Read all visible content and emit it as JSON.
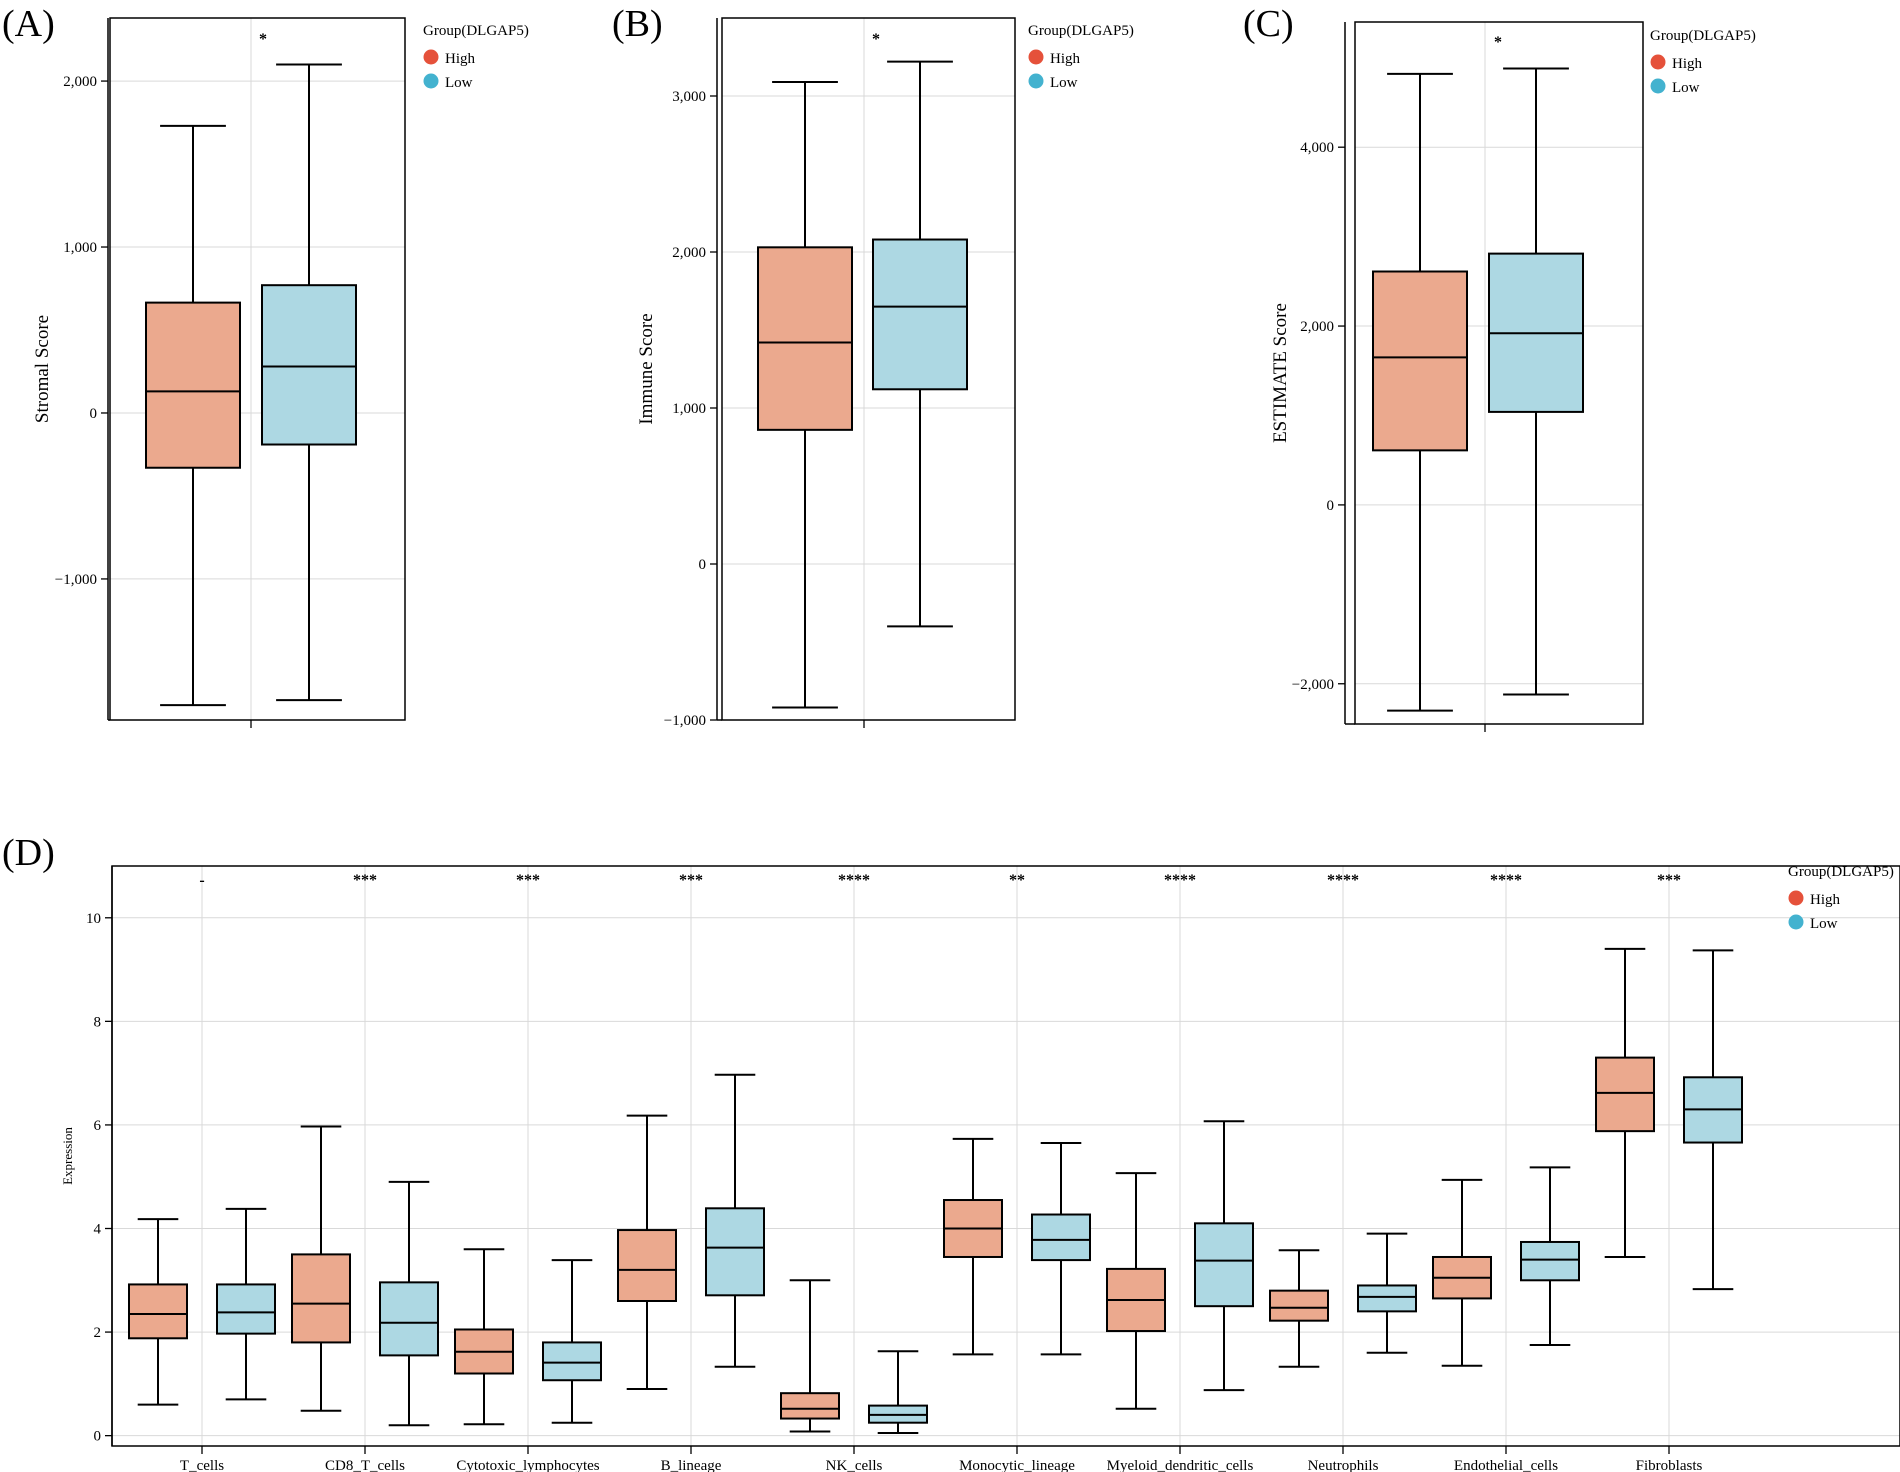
{
  "colors": {
    "high": "#EBA98E",
    "low": "#ADD8E3",
    "high_dot": "#E5513A",
    "low_dot": "#43B2CF"
  },
  "chart_data": [
    {
      "panel": "(A)",
      "type": "boxplot",
      "ylabel": "Stromal Score",
      "ylim": [
        -1850,
        2380
      ],
      "yticks": [
        -1000,
        0,
        1000,
        2000
      ],
      "ytick_labels": [
        "−1,000",
        "0",
        "1,000",
        "2,000"
      ],
      "significance": "*",
      "legend": {
        "title": "Group(DLGAP5)",
        "items": [
          "High",
          "Low"
        ]
      },
      "series": [
        {
          "name": "High",
          "min": -1760,
          "q1": -330,
          "median": 130,
          "q3": 665,
          "max": 1730
        },
        {
          "name": "Low",
          "min": -1730,
          "q1": -190,
          "median": 280,
          "q3": 770,
          "max": 2100
        }
      ]
    },
    {
      "panel": "(B)",
      "type": "boxplot",
      "ylabel": "Immune Score",
      "ylim": [
        -1000,
        3500
      ],
      "yticks": [
        -1000,
        0,
        1000,
        2000,
        3000
      ],
      "ytick_labels": [
        "−1,000",
        "0",
        "1,000",
        "2,000",
        "3,000"
      ],
      "significance": "*",
      "legend": {
        "title": "Group(DLGAP5)",
        "items": [
          "High",
          "Low"
        ]
      },
      "series": [
        {
          "name": "High",
          "min": -920,
          "q1": 860,
          "median": 1420,
          "q3": 2030,
          "max": 3090
        },
        {
          "name": "Low",
          "min": -400,
          "q1": 1120,
          "median": 1650,
          "q3": 2080,
          "max": 3220
        }
      ]
    },
    {
      "panel": "(C)",
      "type": "boxplot",
      "ylabel": "ESTIMATE Score",
      "ylim": [
        -2450,
        5400
      ],
      "yticks": [
        -2000,
        0,
        2000,
        4000
      ],
      "ytick_labels": [
        "−2,000",
        "0",
        "2,000",
        "4,000"
      ],
      "significance": "*",
      "legend": {
        "title": "Group(DLGAP5)",
        "items": [
          "High",
          "Low"
        ]
      },
      "series": [
        {
          "name": "High",
          "min": -2300,
          "q1": 610,
          "median": 1650,
          "q3": 2610,
          "max": 4820
        },
        {
          "name": "Low",
          "min": -2120,
          "q1": 1040,
          "median": 1920,
          "q3": 2810,
          "max": 4880
        }
      ]
    },
    {
      "panel": "(D)",
      "type": "grouped_boxplot",
      "ylabel": "Expression",
      "ylim": [
        -0.2,
        11.0
      ],
      "yticks": [
        0,
        2,
        4,
        6,
        8,
        10
      ],
      "ytick_labels": [
        "0",
        "2",
        "4",
        "6",
        "8",
        "10"
      ],
      "legend": {
        "title": "Group(DLGAP5)",
        "items": [
          "High",
          "Low"
        ]
      },
      "categories": [
        "T_cells",
        "CD8_T_cells",
        "Cytotoxic_lymphocytes",
        "B_lineage",
        "NK_cells",
        "Monocytic_lineage",
        "Myeloid_dendritic_cells",
        "Neutrophils",
        "Endothelial_cells",
        "Fibroblasts"
      ],
      "significance": [
        "-",
        "***",
        "***",
        "***",
        "****",
        "**",
        "****",
        "****",
        "****",
        "***"
      ],
      "series": [
        {
          "name": "High",
          "boxes": [
            {
              "min": 0.6,
              "q1": 1.88,
              "median": 2.35,
              "q3": 2.92,
              "max": 4.18
            },
            {
              "min": 0.48,
              "q1": 1.8,
              "median": 2.55,
              "q3": 3.5,
              "max": 5.97
            },
            {
              "min": 0.22,
              "q1": 1.2,
              "median": 1.62,
              "q3": 2.05,
              "max": 3.6
            },
            {
              "min": 0.9,
              "q1": 2.6,
              "median": 3.2,
              "q3": 3.97,
              "max": 6.18
            },
            {
              "min": 0.08,
              "q1": 0.33,
              "median": 0.52,
              "q3": 0.82,
              "max": 3.0
            },
            {
              "min": 1.57,
              "q1": 3.45,
              "median": 4.0,
              "q3": 4.55,
              "max": 5.73
            },
            {
              "min": 0.52,
              "q1": 2.02,
              "median": 2.62,
              "q3": 3.22,
              "max": 5.07
            },
            {
              "min": 1.33,
              "q1": 2.22,
              "median": 2.47,
              "q3": 2.8,
              "max": 3.58
            },
            {
              "min": 1.35,
              "q1": 2.65,
              "median": 3.05,
              "q3": 3.45,
              "max": 4.94
            },
            {
              "min": 3.45,
              "q1": 5.88,
              "median": 6.62,
              "q3": 7.3,
              "max": 9.4
            }
          ]
        },
        {
          "name": "Low",
          "boxes": [
            {
              "min": 0.7,
              "q1": 1.97,
              "median": 2.38,
              "q3": 2.92,
              "max": 4.38
            },
            {
              "min": 0.2,
              "q1": 1.55,
              "median": 2.18,
              "q3": 2.96,
              "max": 4.9
            },
            {
              "min": 0.25,
              "q1": 1.07,
              "median": 1.41,
              "q3": 1.8,
              "max": 3.39
            },
            {
              "min": 1.33,
              "q1": 2.71,
              "median": 3.63,
              "q3": 4.39,
              "max": 6.97
            },
            {
              "min": 0.05,
              "q1": 0.25,
              "median": 0.4,
              "q3": 0.58,
              "max": 1.63
            },
            {
              "min": 1.57,
              "q1": 3.39,
              "median": 3.78,
              "q3": 4.27,
              "max": 5.65
            },
            {
              "min": 0.88,
              "q1": 2.5,
              "median": 3.38,
              "q3": 4.1,
              "max": 6.07
            },
            {
              "min": 1.6,
              "q1": 2.4,
              "median": 2.68,
              "q3": 2.9,
              "max": 3.9
            },
            {
              "min": 1.75,
              "q1": 3.0,
              "median": 3.4,
              "q3": 3.74,
              "max": 5.18
            },
            {
              "min": 2.83,
              "q1": 5.66,
              "median": 6.3,
              "q3": 6.92,
              "max": 9.37
            }
          ]
        }
      ]
    }
  ]
}
